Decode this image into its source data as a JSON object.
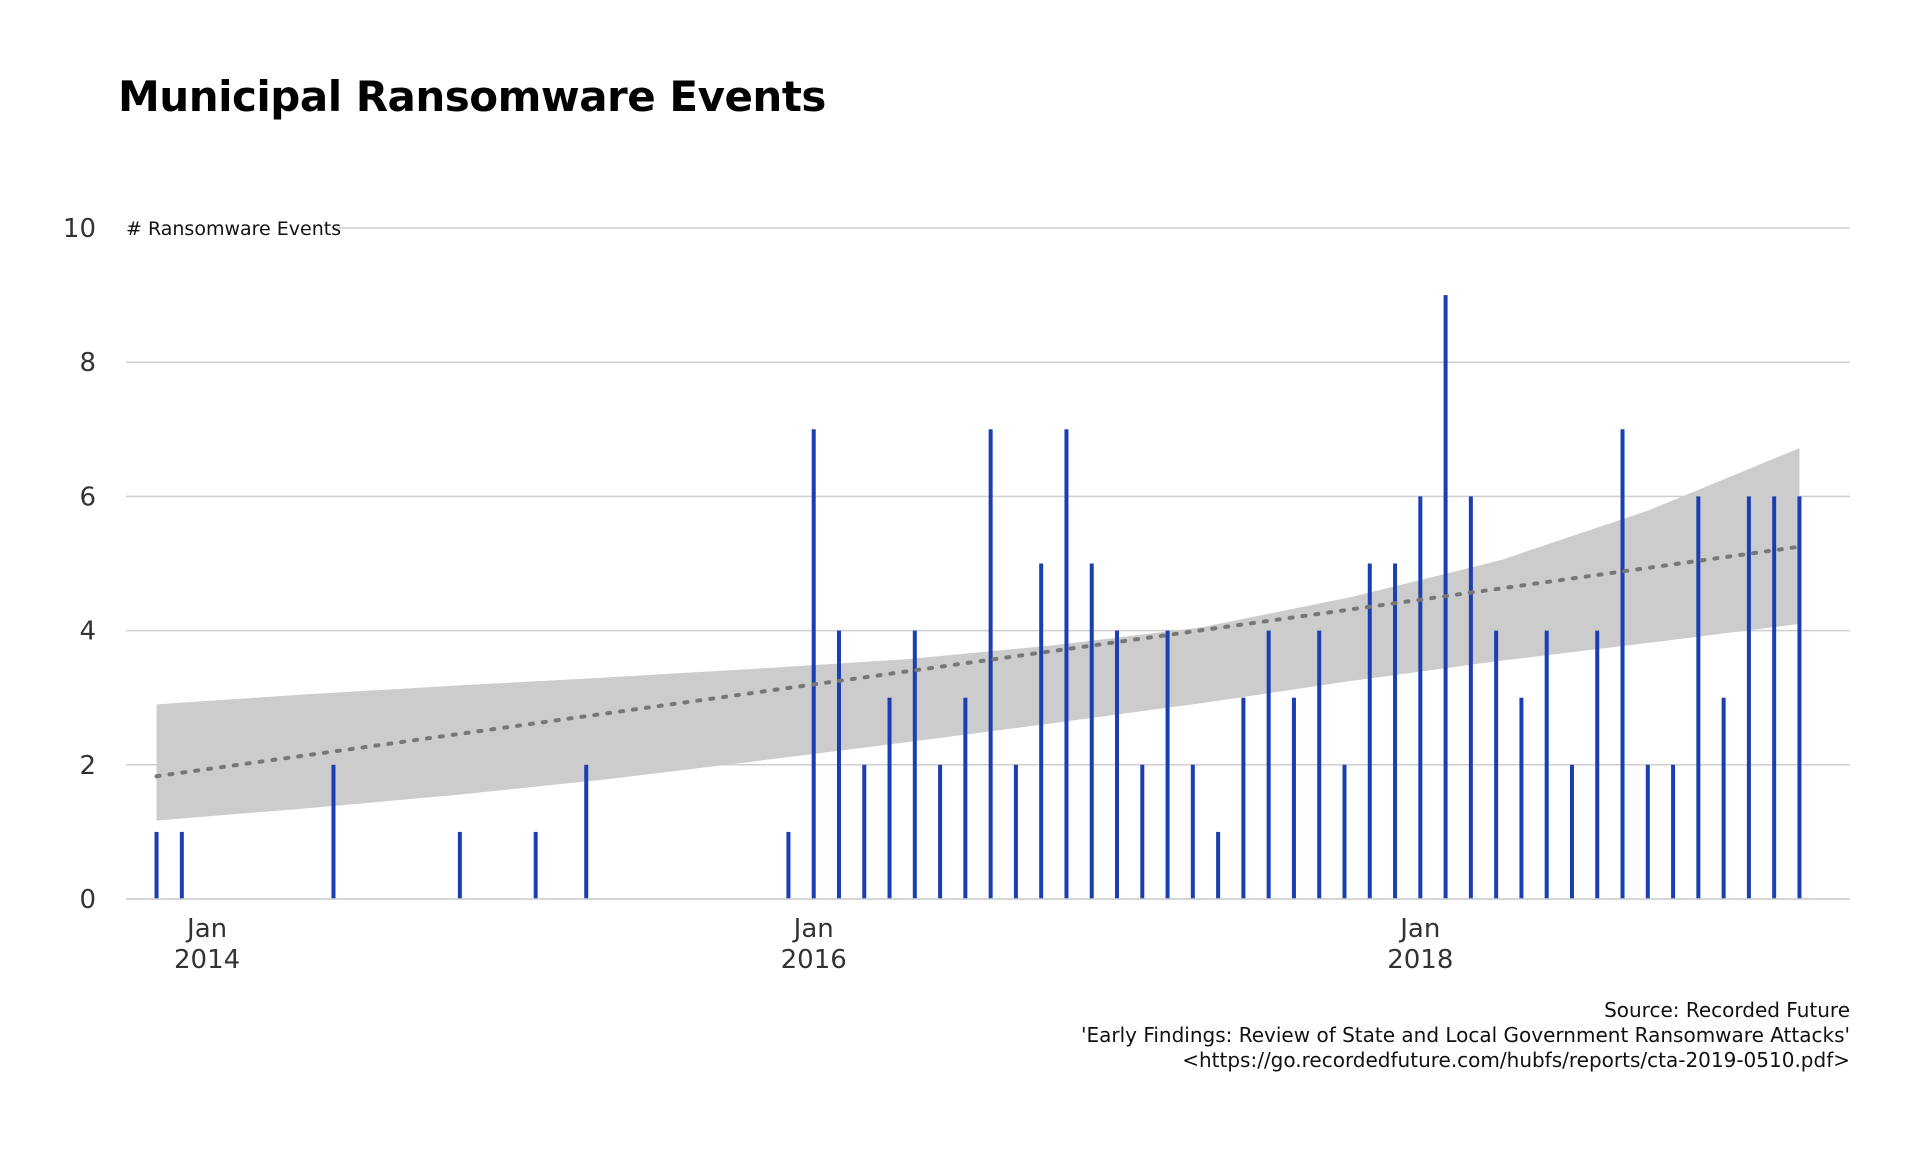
{
  "chart_data": {
    "type": "bar",
    "title": "Municipal Ransomware Events",
    "ylabel": "# Ransomware Events",
    "xlabel": "",
    "ylim": [
      0,
      10
    ],
    "yticks": [
      0,
      2,
      4,
      6,
      8,
      10
    ],
    "xlim": [
      "2013-09",
      "2019-06"
    ],
    "xticks": [
      {
        "x": "2014-01",
        "label_top": "Jan",
        "label_bottom": "2014"
      },
      {
        "x": "2016-01",
        "label_top": "Jan",
        "label_bottom": "2016"
      },
      {
        "x": "2018-01",
        "label_top": "Jan",
        "label_bottom": "2018"
      }
    ],
    "bar_color": "#1a3fb0",
    "series": [
      {
        "name": "# Ransomware Events",
        "x": [
          "2013-11",
          "2013-12",
          "2014-06",
          "2014-11",
          "2015-02",
          "2015-04",
          "2015-12",
          "2016-01",
          "2016-02",
          "2016-03",
          "2016-04",
          "2016-05",
          "2016-06",
          "2016-07",
          "2016-08",
          "2016-09",
          "2016-10",
          "2016-11",
          "2016-12",
          "2017-01",
          "2017-02",
          "2017-03",
          "2017-04",
          "2017-05",
          "2017-06",
          "2017-07",
          "2017-08",
          "2017-09",
          "2017-10",
          "2017-11",
          "2017-12",
          "2018-01",
          "2018-02",
          "2018-03",
          "2018-04",
          "2018-05",
          "2018-06",
          "2018-07",
          "2018-08",
          "2018-09",
          "2018-10",
          "2018-11",
          "2018-12",
          "2019-01",
          "2019-02",
          "2019-03",
          "2019-04"
        ],
        "values": [
          1,
          1,
          2,
          1,
          1,
          2,
          1,
          7,
          4,
          2,
          3,
          4,
          2,
          3,
          7,
          2,
          5,
          7,
          5,
          4,
          2,
          4,
          2,
          1,
          3,
          4,
          3,
          4,
          2,
          5,
          5,
          6,
          9,
          6,
          4,
          3,
          4,
          2,
          4,
          7,
          2,
          2,
          6,
          3,
          6,
          6,
          6
        ]
      }
    ],
    "trend": {
      "style": "dotted",
      "color": "#777777",
      "x": [
        "2013-11",
        "2019-04"
      ],
      "fit": [
        1.83,
        5.25
      ],
      "band_lower": [
        1.17,
        1.35,
        1.55,
        1.78,
        2.05,
        2.33,
        2.62,
        2.92,
        3.25,
        3.55,
        3.82,
        4.1
      ],
      "band_upper": [
        2.9,
        3.05,
        3.18,
        3.3,
        3.43,
        3.57,
        3.78,
        4.05,
        4.5,
        5.05,
        5.8,
        6.72
      ],
      "band_color": "#cccccc"
    }
  },
  "caption": {
    "line1": "Source: Recorded Future",
    "line2": "'Early Findings: Review of State and Local Government Ransomware Attacks'",
    "line3": "<https://go.recordedfuture.com/hubfs/reports/cta-2019-0510.pdf>"
  }
}
